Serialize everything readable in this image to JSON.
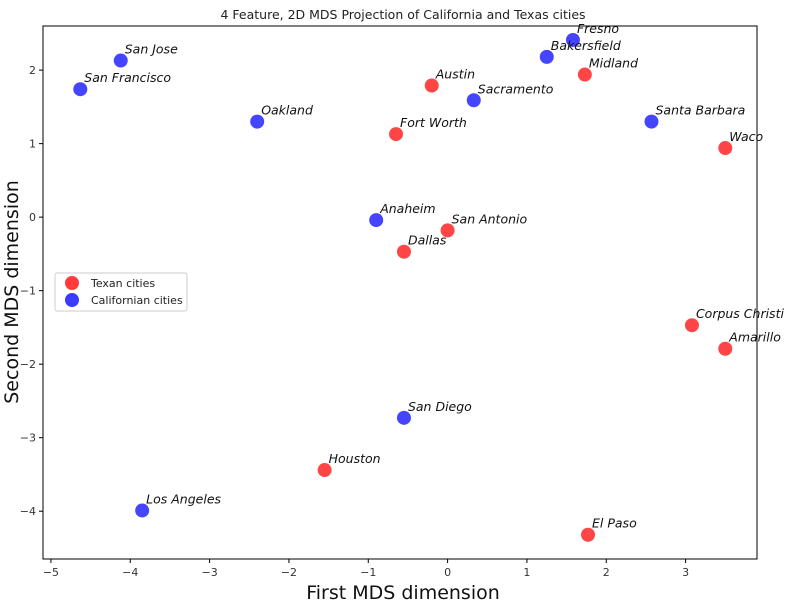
{
  "chart_data": {
    "type": "scatter",
    "title": "4 Feature, 2D MDS Projection of California and Texas cities",
    "xlabel": "First MDS dimension",
    "ylabel": "Second MDS dimension",
    "xlim": [
      -5.1,
      3.9
    ],
    "ylim": [
      -4.65,
      2.6
    ],
    "xticks": [
      -5,
      -4,
      -3,
      -2,
      -1,
      0,
      1,
      2,
      3
    ],
    "xtick_labels": [
      "−5",
      "−4",
      "−3",
      "−2",
      "−1",
      "0",
      "1",
      "2",
      "3"
    ],
    "yticks": [
      -4,
      -3,
      -2,
      -1,
      0,
      1,
      2
    ],
    "ytick_labels": [
      "−4",
      "−3",
      "−2",
      "−1",
      "0",
      "1",
      "2"
    ],
    "grid": false,
    "legend_position": "center-left",
    "series": [
      {
        "name": "Texan cities",
        "color": "#ff3b3b",
        "points": [
          {
            "label": "Austin",
            "x": -0.2,
            "y": 1.79
          },
          {
            "label": "Midland",
            "x": 1.73,
            "y": 1.94
          },
          {
            "label": "Fort Worth",
            "x": -0.65,
            "y": 1.13
          },
          {
            "label": "Waco",
            "x": 3.5,
            "y": 0.94
          },
          {
            "label": "San Antonio",
            "x": 0.0,
            "y": -0.18
          },
          {
            "label": "Dallas",
            "x": -0.55,
            "y": -0.47
          },
          {
            "label": "Corpus Christi",
            "x": 3.08,
            "y": -1.47
          },
          {
            "label": "Amarillo",
            "x": 3.5,
            "y": -1.79
          },
          {
            "label": "Houston",
            "x": -1.55,
            "y": -3.44
          },
          {
            "label": "El Paso",
            "x": 1.77,
            "y": -4.32
          }
        ]
      },
      {
        "name": "Californian cities",
        "color": "#3b3bff",
        "points": [
          {
            "label": "San Jose",
            "x": -4.12,
            "y": 2.13
          },
          {
            "label": "San Francisco",
            "x": -4.63,
            "y": 1.74
          },
          {
            "label": "Oakland",
            "x": -2.4,
            "y": 1.3
          },
          {
            "label": "Fresno",
            "x": 1.58,
            "y": 2.41
          },
          {
            "label": "Bakersfield",
            "x": 1.25,
            "y": 2.18
          },
          {
            "label": "Sacramento",
            "x": 0.33,
            "y": 1.59
          },
          {
            "label": "Santa Barbara",
            "x": 2.57,
            "y": 1.3
          },
          {
            "label": "Anaheim",
            "x": -0.9,
            "y": -0.04
          },
          {
            "label": "San Diego",
            "x": -0.55,
            "y": -2.73
          },
          {
            "label": "Los Angeles",
            "x": -3.85,
            "y": -3.99
          }
        ]
      }
    ]
  }
}
